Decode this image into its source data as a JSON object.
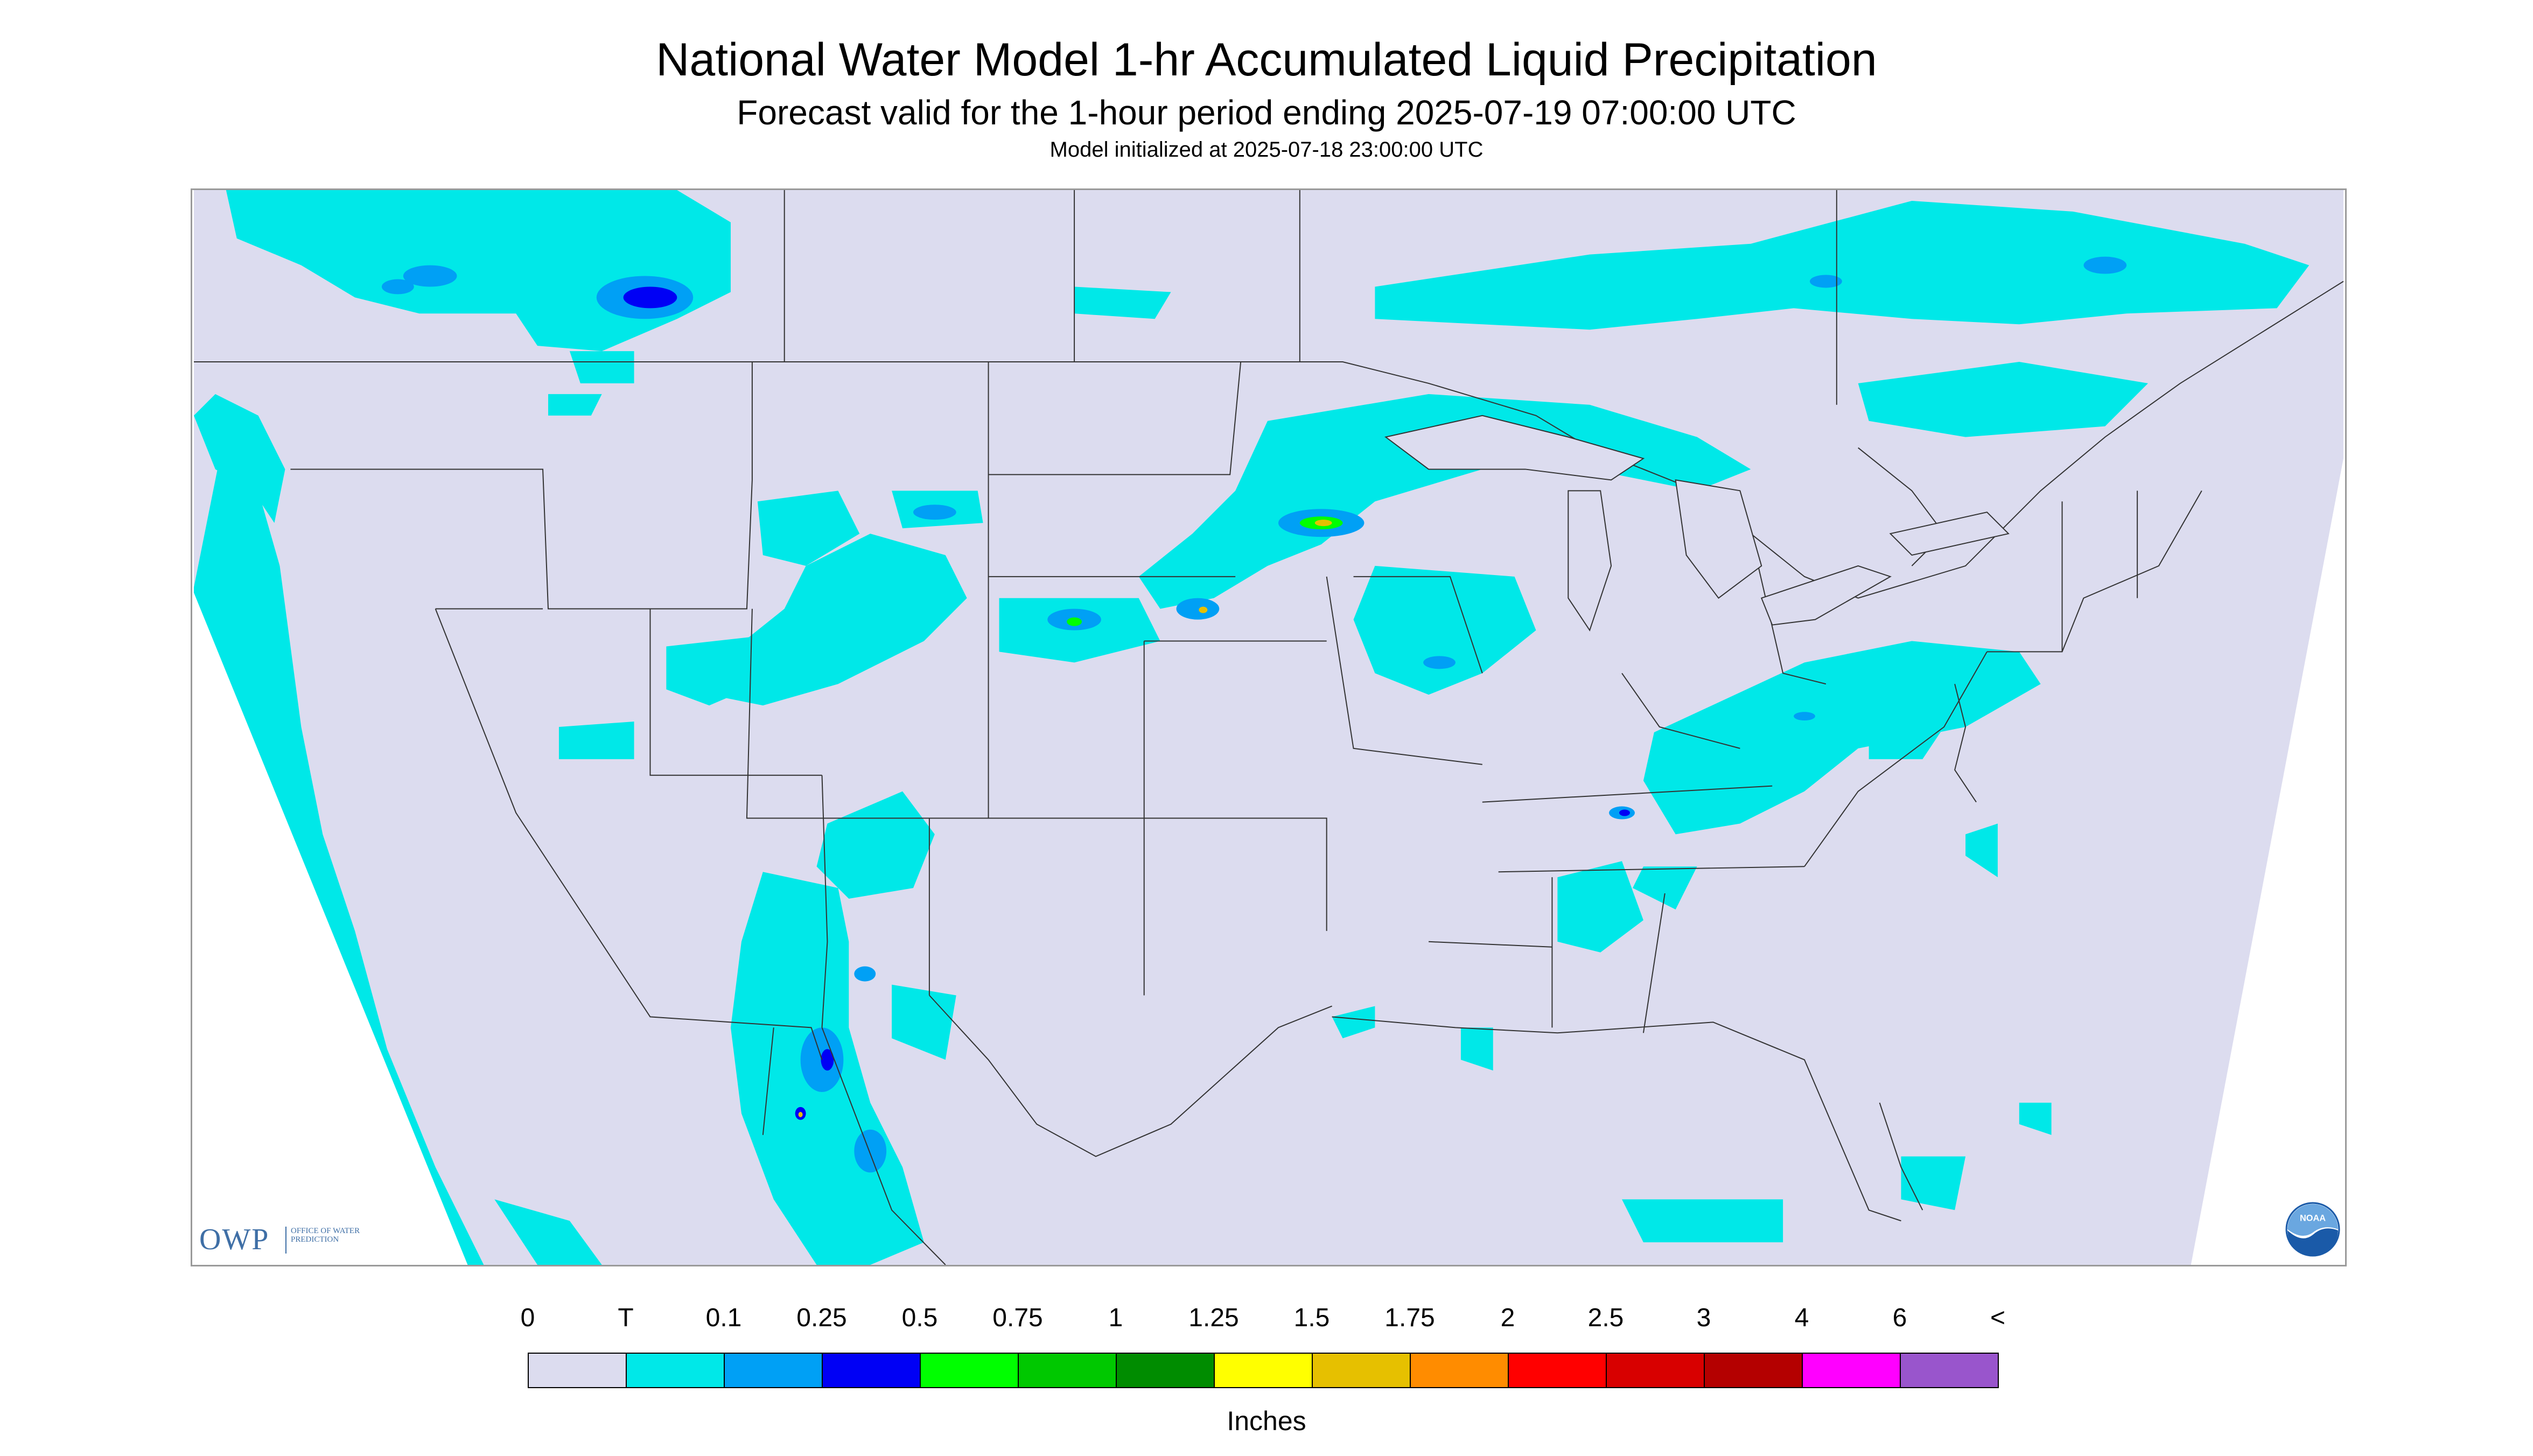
{
  "header": {
    "title": "National Water Model 1-hr Accumulated Liquid Precipitation",
    "subtitle": "Forecast valid for the 1-hour period ending 2025-07-19 07:00:00 UTC",
    "init_line": "Model initialized at 2025-07-18 23:00:00 UTC"
  },
  "map": {
    "background_color": "#dcdcef",
    "outside_color": "#ffffff",
    "border_color": "#333333"
  },
  "logos": {
    "owp_name": "OWP",
    "owp_full": "OFFICE OF WATER PREDICTION",
    "noaa_name": "NOAA",
    "owp_color": "#3f6fa6",
    "noaa_color": "#1a5aa8"
  },
  "legend": {
    "labels": [
      "0",
      "T",
      "0.1",
      "0.25",
      "0.5",
      "0.75",
      "1",
      "1.25",
      "1.5",
      "1.75",
      "2",
      "2.5",
      "3",
      "4",
      "6",
      "<"
    ],
    "colors": [
      "#dcdcef",
      "#00e8e8",
      "#00a0f5",
      "#0000f5",
      "#00ff00",
      "#00c800",
      "#008c00",
      "#ffff00",
      "#e6c000",
      "#ff8c00",
      "#ff0000",
      "#d80000",
      "#b40000",
      "#ff00ff",
      "#9955cc"
    ],
    "units": "Inches"
  }
}
